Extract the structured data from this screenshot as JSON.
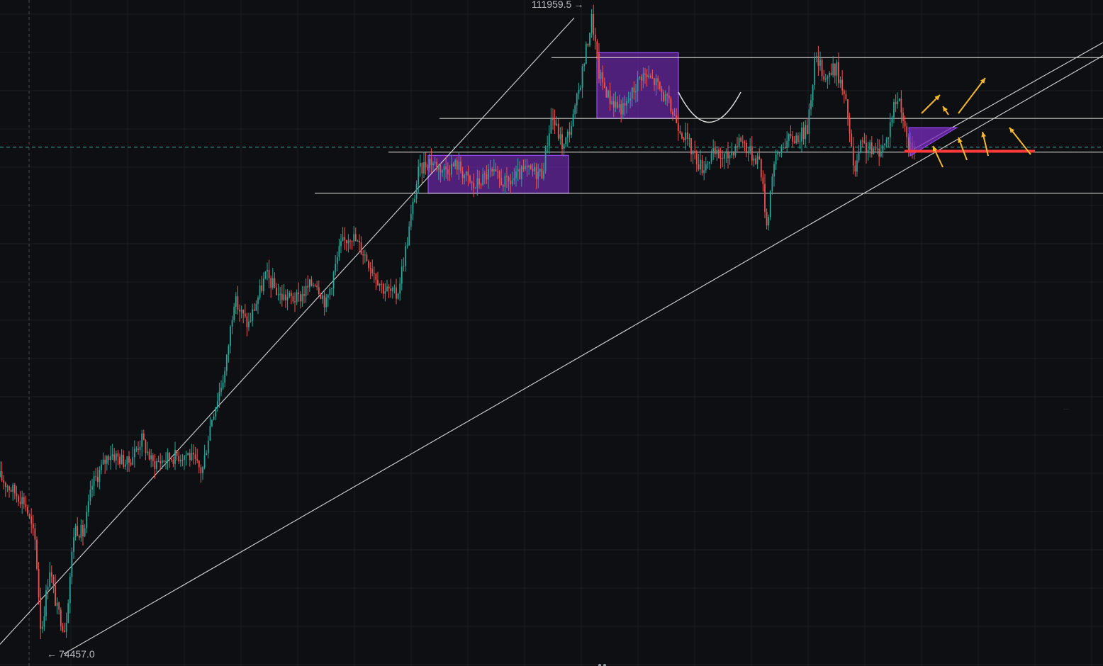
{
  "colors": {
    "background": "#0e0f12",
    "grid": "#1c1e23",
    "up_candle": "#26a69a",
    "down_candle": "#ef5350",
    "channel_line": "#d7d7d7",
    "level_line": "#e6e6e6",
    "dashed_price_line": "#3fa89a",
    "zone_fill": "#7b2cbf",
    "zone_stroke": "#9b4dff",
    "red_level": "#ff3b3b",
    "arrow": "#f5b82e",
    "label_text": "#b9bcc4"
  },
  "labels": {
    "high": "111959.5",
    "low": "74457.0",
    "arrow_right": "→",
    "arrow_left": "←",
    "ellipsis": "..."
  },
  "chart_data": {
    "type": "candlestick",
    "title": "",
    "xlabel": "",
    "ylabel": "",
    "price_range": [
      72500,
      113000
    ],
    "grid": true,
    "marked_prices": {
      "high": 111959.5,
      "low": 74457.0
    },
    "horizontal_levels": [
      109500,
      105800,
      103750,
      101250
    ],
    "current_price_line": 104050,
    "red_level": 103800,
    "consolidation_zones": [
      {
        "name": "zone-1",
        "price_top": 103550,
        "price_bottom": 101250
      },
      {
        "name": "zone-2",
        "price_top": 109800,
        "price_bottom": 105800
      }
    ],
    "ascending_channel": {
      "upper_line_points": [
        [
          0,
          91700
        ],
        [
          810,
          112000
        ]
      ],
      "lower_line_points": [
        [
          90,
          72800
        ],
        [
          1556,
          109100
        ]
      ]
    },
    "price_path": [
      [
        0,
        84000
      ],
      [
        15,
        83300
      ],
      [
        35,
        82500
      ],
      [
        50,
        80000
      ],
      [
        58,
        74457
      ],
      [
        70,
        78500
      ],
      [
        80,
        76000
      ],
      [
        92,
        74700
      ],
      [
        105,
        81000
      ],
      [
        118,
        80500
      ],
      [
        130,
        83500
      ],
      [
        155,
        85500
      ],
      [
        180,
        84800
      ],
      [
        200,
        86300
      ],
      [
        215,
        84800
      ],
      [
        240,
        85200
      ],
      [
        265,
        85400
      ],
      [
        285,
        84300
      ],
      [
        298,
        87500
      ],
      [
        318,
        90500
      ],
      [
        330,
        94800
      ],
      [
        350,
        93200
      ],
      [
        375,
        96300
      ],
      [
        395,
        95000
      ],
      [
        420,
        94800
      ],
      [
        445,
        96000
      ],
      [
        460,
        94500
      ],
      [
        480,
        98000
      ],
      [
        495,
        98800
      ],
      [
        515,
        97500
      ],
      [
        540,
        95500
      ],
      [
        560,
        95000
      ],
      [
        575,
        98500
      ],
      [
        590,
        102500
      ],
      [
        605,
        103300
      ],
      [
        625,
        102700
      ],
      [
        645,
        103000
      ],
      [
        668,
        101600
      ],
      [
        690,
        102500
      ],
      [
        715,
        101800
      ],
      [
        740,
        102600
      ],
      [
        765,
        102500
      ],
      [
        778,
        106000
      ],
      [
        795,
        104000
      ],
      [
        810,
        106000
      ],
      [
        825,
        109500
      ],
      [
        835,
        111959.5
      ],
      [
        845,
        108500
      ],
      [
        860,
        107000
      ],
      [
        880,
        106300
      ],
      [
        905,
        108500
      ],
      [
        925,
        108000
      ],
      [
        945,
        106500
      ],
      [
        960,
        105200
      ],
      [
        978,
        103700
      ],
      [
        990,
        102800
      ],
      [
        1005,
        103600
      ],
      [
        1025,
        103400
      ],
      [
        1045,
        104600
      ],
      [
        1060,
        103600
      ],
      [
        1072,
        103300
      ],
      [
        1082,
        99200
      ],
      [
        1090,
        102800
      ],
      [
        1105,
        104300
      ],
      [
        1120,
        104600
      ],
      [
        1138,
        105000
      ],
      [
        1150,
        109500
      ],
      [
        1165,
        108300
      ],
      [
        1180,
        108900
      ],
      [
        1195,
        106300
      ],
      [
        1205,
        102300
      ],
      [
        1215,
        104200
      ],
      [
        1235,
        103700
      ],
      [
        1250,
        104300
      ],
      [
        1262,
        106800
      ],
      [
        1270,
        107000
      ],
      [
        1280,
        104000
      ],
      [
        1290,
        104050
      ]
    ],
    "annotations": [
      "rounded-bottom-arc",
      "rising-wedge-triangle",
      "breakout-arrows"
    ]
  }
}
